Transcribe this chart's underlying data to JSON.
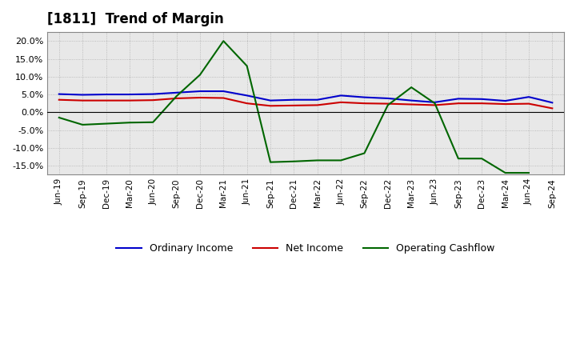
{
  "title": "[1811]  Trend of Margin",
  "x_labels": [
    "Jun-19",
    "Sep-19",
    "Dec-19",
    "Mar-20",
    "Jun-20",
    "Sep-20",
    "Dec-20",
    "Mar-21",
    "Jun-21",
    "Sep-21",
    "Dec-21",
    "Mar-22",
    "Jun-22",
    "Sep-22",
    "Dec-22",
    "Mar-23",
    "Jun-23",
    "Sep-23",
    "Dec-23",
    "Mar-24",
    "Jun-24",
    "Sep-24"
  ],
  "ordinary_income": [
    5.1,
    4.9,
    5.0,
    5.0,
    5.1,
    5.5,
    5.9,
    5.9,
    4.7,
    3.3,
    3.5,
    3.5,
    4.7,
    4.2,
    3.9,
    3.3,
    2.8,
    3.8,
    3.7,
    3.2,
    4.3,
    2.7
  ],
  "net_income": [
    3.5,
    3.3,
    3.3,
    3.3,
    3.4,
    3.9,
    4.1,
    4.0,
    2.5,
    1.8,
    1.9,
    2.0,
    2.8,
    2.5,
    2.4,
    2.2,
    2.0,
    2.5,
    2.5,
    2.3,
    2.4,
    1.1
  ],
  "operating_cashflow": [
    -1.5,
    -3.5,
    -3.2,
    -2.9,
    -2.8,
    4.5,
    10.5,
    20.0,
    13.0,
    -14.0,
    -13.8,
    -13.5,
    -13.5,
    -11.5,
    2.0,
    7.0,
    2.5,
    -13.0,
    -13.0,
    -17.0,
    -17.0,
    null
  ],
  "line_colors": {
    "ordinary_income": "#0000cc",
    "net_income": "#cc0000",
    "operating_cashflow": "#006600"
  },
  "ylim": [
    -17.5,
    22.5
  ],
  "yticks": [
    -15.0,
    -10.0,
    -5.0,
    0.0,
    5.0,
    10.0,
    15.0,
    20.0
  ],
  "background_color": "#ffffff",
  "plot_bg_color": "#e8e8e8",
  "legend_labels": [
    "Ordinary Income",
    "Net Income",
    "Operating Cashflow"
  ]
}
